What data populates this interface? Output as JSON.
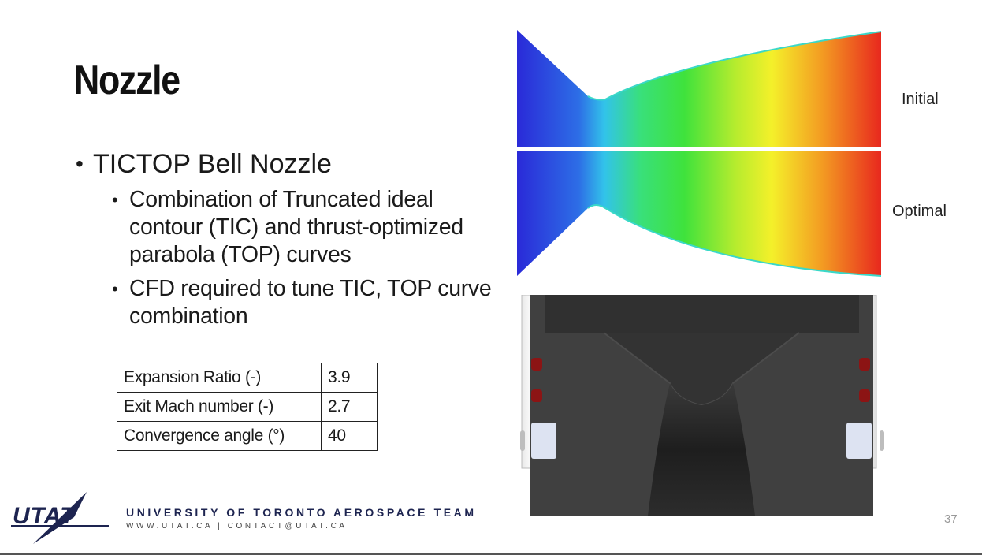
{
  "slide": {
    "title": "Nozzle",
    "bullet_main": "TICTOP Bell Nozzle",
    "sub_bullets": [
      "Combination of Truncated ideal contour (TIC) and thrust-optimized parabola (TOP) curves",
      "CFD required to tune TIC, TOP curve combination"
    ],
    "page_number": "37"
  },
  "params_table": {
    "rows": [
      {
        "label": "Expansion Ratio (-)",
        "value": "3.9"
      },
      {
        "label": "Exit Mach number (-)",
        "value": "2.7"
      },
      {
        "label": "Convergence angle (°)",
        "value": "40"
      }
    ]
  },
  "figure": {
    "label_initial": "Initial",
    "label_optimal": "Optimal"
  },
  "footer": {
    "logo_text": "UTAT",
    "org_name": "UNIVERSITY OF TORONTO AEROSPACE TEAM",
    "contact_line": "WWW.UTAT.CA  |  CONTACT@UTAT.CA"
  },
  "colors": {
    "brand_navy": "#1d2450",
    "mach_low": "#2a2ad8",
    "mach_high": "#e8281e"
  }
}
